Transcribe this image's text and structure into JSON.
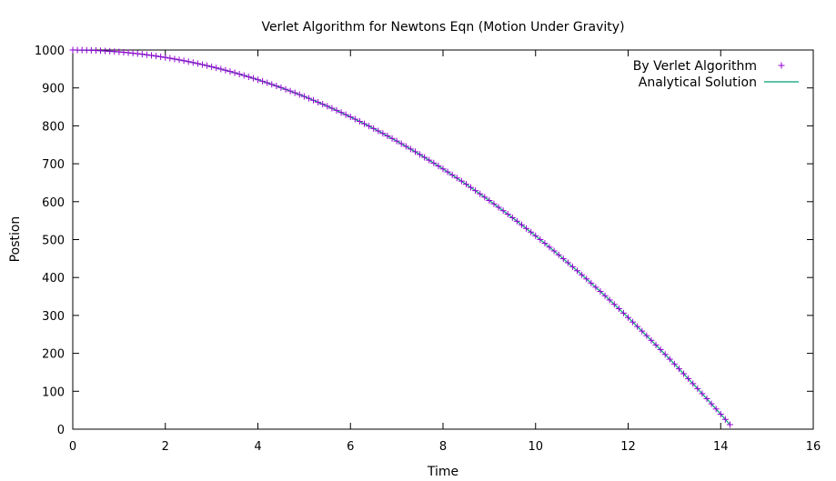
{
  "chart_data": {
    "type": "scatter",
    "title": "Verlet Algorithm for Newtons Eqn (Motion Under Gravity)",
    "xlabel": "Time",
    "ylabel": "Postion",
    "xlim": [
      0,
      16
    ],
    "ylim": [
      0,
      1000
    ],
    "xticks": [
      "0",
      "2",
      "4",
      "6",
      "8",
      "10",
      "12",
      "14",
      "16"
    ],
    "yticks": [
      "0",
      "100",
      "200",
      "300",
      "400",
      "500",
      "600",
      "700",
      "800",
      "900",
      "1000"
    ],
    "legend_position": "top-right",
    "grid": false,
    "series": [
      {
        "name": "By Verlet Algorithm",
        "style": "points",
        "marker": "plus",
        "color": "#9400d3",
        "x": [
          0,
          0.1,
          0.2,
          0.3,
          0.4,
          0.5,
          0.6,
          0.7,
          0.8,
          0.9,
          1.0,
          1.1,
          1.2,
          1.3,
          1.4,
          1.5,
          1.6,
          1.7,
          1.8,
          1.9,
          2.0,
          2.1,
          2.2,
          2.3,
          2.4,
          2.5,
          2.6,
          2.7,
          2.8,
          2.9,
          3.0,
          3.1,
          3.2,
          3.3,
          3.4,
          3.5,
          3.6,
          3.7,
          3.8,
          3.9,
          4.0,
          4.1,
          4.2,
          4.3,
          4.4,
          4.5,
          4.6,
          4.7,
          4.8,
          4.9,
          5.0,
          5.1,
          5.2,
          5.3,
          5.4,
          5.5,
          5.6,
          5.7,
          5.8,
          5.9,
          6.0,
          6.1,
          6.2,
          6.3,
          6.4,
          6.5,
          6.6,
          6.7,
          6.8,
          6.9,
          7.0,
          7.1,
          7.2,
          7.3,
          7.4,
          7.5,
          7.6,
          7.7,
          7.8,
          7.9,
          8.0,
          8.1,
          8.2,
          8.3,
          8.4,
          8.5,
          8.6,
          8.7,
          8.8,
          8.9,
          9.0,
          9.1,
          9.2,
          9.3,
          9.4,
          9.5,
          9.6,
          9.7,
          9.8,
          9.9,
          10.0,
          10.1,
          10.2,
          10.3,
          10.4,
          10.5,
          10.6,
          10.7,
          10.8,
          10.9,
          11.0,
          11.1,
          11.2,
          11.3,
          11.4,
          11.5,
          11.6,
          11.7,
          11.8,
          11.9,
          12.0,
          12.1,
          12.2,
          12.3,
          12.4,
          12.5,
          12.6,
          12.7,
          12.8,
          12.9,
          13.0,
          13.1,
          13.2,
          13.3,
          13.4,
          13.5,
          13.6,
          13.7,
          13.8,
          13.9,
          14.0,
          14.1,
          14.2
        ],
        "y": [
          1000.0,
          999.95,
          999.8,
          999.56,
          999.22,
          998.78,
          998.24,
          997.6,
          996.86,
          996.03,
          995.1,
          994.07,
          992.94,
          991.72,
          990.4,
          988.98,
          987.46,
          985.84,
          984.12,
          982.31,
          980.4,
          978.39,
          976.28,
          974.08,
          971.78,
          969.38,
          966.88,
          964.28,
          961.58,
          958.79,
          955.9,
          952.91,
          949.82,
          946.64,
          943.36,
          939.98,
          936.5,
          932.92,
          929.24,
          925.47,
          921.6,
          917.63,
          913.56,
          909.4,
          905.14,
          900.78,
          896.32,
          891.76,
          887.1,
          882.35,
          877.5,
          872.55,
          867.5,
          862.36,
          857.12,
          851.78,
          846.34,
          840.8,
          835.16,
          829.43,
          823.6,
          817.67,
          811.64,
          805.52,
          799.3,
          792.98,
          786.56,
          780.04,
          773.42,
          766.71,
          759.9,
          752.99,
          745.98,
          738.88,
          731.68,
          724.38,
          716.98,
          709.48,
          701.88,
          694.19,
          686.4,
          678.51,
          670.52,
          662.44,
          654.26,
          645.98,
          637.6,
          629.12,
          620.54,
          611.87,
          603.1,
          594.23,
          585.26,
          576.2,
          567.04,
          557.78,
          548.42,
          538.96,
          529.4,
          519.75,
          510.0,
          500.15,
          490.2,
          480.16,
          470.02,
          459.78,
          449.44,
          439.0,
          428.46,
          417.83,
          407.1,
          396.27,
          385.34,
          374.32,
          363.2,
          351.98,
          340.66,
          329.24,
          317.72,
          306.11,
          294.4,
          282.59,
          270.68,
          258.68,
          246.58,
          234.38,
          222.08,
          209.68,
          197.18,
          184.59,
          171.9,
          159.11,
          146.22,
          133.24,
          120.16,
          106.98,
          93.7,
          80.32,
          66.84,
          53.27,
          39.6,
          25.83,
          11.96
        ]
      },
      {
        "name": "Analytical Solution",
        "style": "line",
        "color": "#009e73",
        "x": [
          0,
          0.5,
          1,
          1.5,
          2,
          2.5,
          3,
          3.5,
          4,
          4.5,
          5,
          5.5,
          6,
          6.5,
          7,
          7.5,
          8,
          8.5,
          9,
          9.5,
          10,
          10.5,
          11,
          11.5,
          12,
          12.5,
          13,
          13.5,
          14,
          14.2
        ],
        "y": [
          1000.0,
          998.78,
          995.1,
          988.98,
          980.4,
          969.38,
          955.9,
          939.98,
          921.6,
          900.78,
          877.5,
          851.78,
          823.6,
          792.98,
          759.9,
          724.38,
          686.4,
          645.98,
          603.1,
          557.78,
          510.0,
          459.78,
          407.1,
          351.98,
          294.4,
          234.38,
          171.9,
          106.98,
          39.6,
          11.96
        ]
      }
    ]
  }
}
